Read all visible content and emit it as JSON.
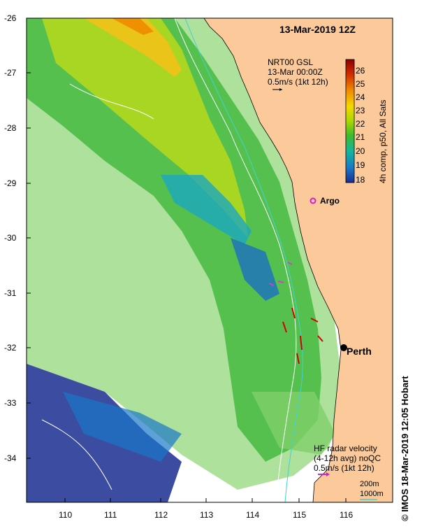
{
  "map": {
    "title": "13-Mar-2019 12Z",
    "lat_ticks": [
      "-26",
      "-27",
      "-28",
      "-29",
      "-30",
      "-31",
      "-32",
      "-33",
      "-34"
    ],
    "lon_ticks": [
      "110",
      "111",
      "112",
      "113",
      "114",
      "115",
      "116"
    ],
    "land_color": "#fbc99a",
    "ocean_color": "#ffffff"
  },
  "ghrsst": {
    "line1": "NRT00 GSL",
    "line2": "13-Mar 00:00Z",
    "line3": "0.5m/s (1kt 12h)"
  },
  "colorbar": {
    "ticks": [
      "26",
      "25",
      "24",
      "23",
      "22",
      "21",
      "20",
      "19",
      "18"
    ],
    "label": "4h comp, p50, All Sats",
    "colors": [
      "#8a0000",
      "#d12b00",
      "#f08a00",
      "#f5d800",
      "#a8d800",
      "#3cba2e",
      "#14b5a0",
      "#1a78c8",
      "#1a2d8f"
    ]
  },
  "labels": {
    "argo": "Argo",
    "perth": "Perth"
  },
  "hf_radar": {
    "line1": "HF radar velocity",
    "line2": "(4-12h avg) noQC",
    "line3": "0.5m/s (1kt 12h)"
  },
  "contours": {
    "c200": "200m",
    "c1000": "1000m"
  },
  "credit": "© IMOS 18-Mar-2019 12:05 Hobart"
}
